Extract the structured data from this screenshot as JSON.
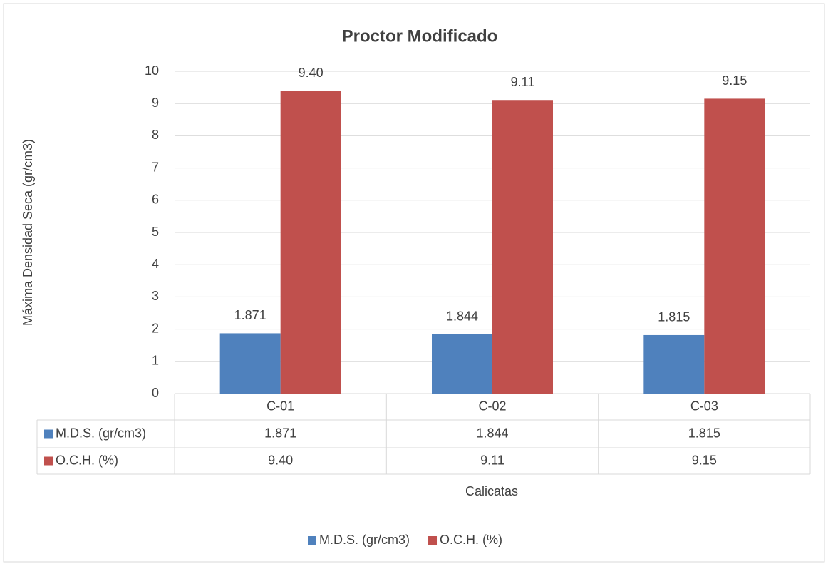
{
  "chart_data": {
    "type": "bar",
    "title": "Proctor Modificado",
    "y_label": "Máxima Densidad Seca (gr/cm3)",
    "x_label": "Calicatas",
    "categories": [
      "C-01",
      "C-02",
      "C-03"
    ],
    "series": [
      {
        "name": "M.D.S. (gr/cm3)",
        "color": "#4f81bd",
        "values": [
          1.871,
          1.844,
          1.815
        ]
      },
      {
        "name": "O.C.H. (%)",
        "color": "#c0504d",
        "values": [
          9.4,
          9.11,
          9.15
        ],
        "value_labels": [
          "9.40",
          "9.11",
          "9.15"
        ]
      }
    ],
    "ylim": [
      0,
      10
    ],
    "yticks": [
      0,
      1,
      2,
      3,
      4,
      5,
      6,
      7,
      8,
      9,
      10
    ],
    "grid": true,
    "legend": "bottom",
    "data_table": true
  }
}
